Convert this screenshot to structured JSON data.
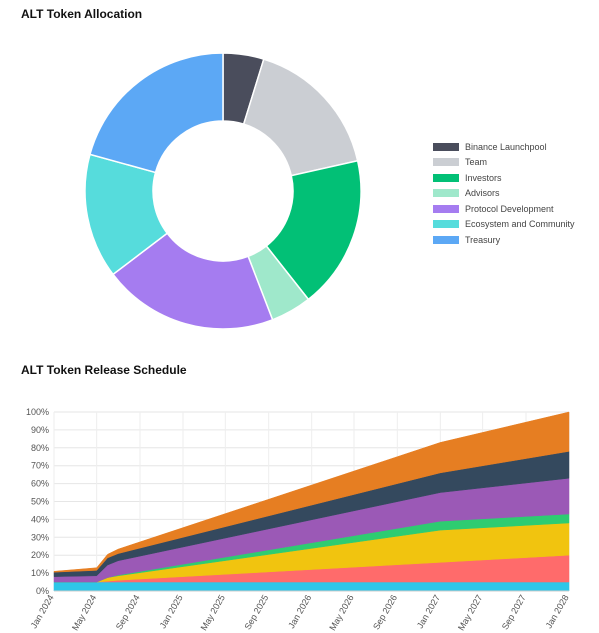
{
  "page": {
    "allocation_title": "ALT Token Allocation",
    "release_title": "ALT Token Release Schedule"
  },
  "chart_data": [
    {
      "type": "pie",
      "style": "donut",
      "title": "ALT Token Allocation",
      "legend_position": "right",
      "labels": [
        "Binance Launchpool",
        "Team",
        "Investors",
        "Advisors",
        "Protocol Development",
        "Ecosystem and Community",
        "Treasury"
      ],
      "values": [
        5,
        17.5,
        18.75,
        5,
        21.5,
        15.29,
        21.71
      ],
      "colors": [
        "#4a4d5c",
        "#cbced3",
        "#02c076",
        "#9fe8cb",
        "#a57cf0",
        "#56dcdc",
        "#5ca8f5"
      ]
    },
    {
      "type": "area",
      "stacked": true,
      "title": "ALT Token Release Schedule",
      "xlabel": "",
      "ylabel": "",
      "ylim": [
        0,
        100
      ],
      "y_ticks": [
        "0%",
        "10%",
        "20%",
        "30%",
        "40%",
        "50%",
        "60%",
        "70%",
        "80%",
        "90%",
        "100%"
      ],
      "grid": true,
      "x": [
        "2024-01",
        "2024-05",
        "2024-06",
        "2024-07",
        "2027-01",
        "2028-01"
      ],
      "x_ticks": [
        "Jan 2024",
        "May 2024",
        "Sep 2024",
        "Jan 2025",
        "May 2025",
        "Sep 2025",
        "Jan 2026",
        "May 2026",
        "Sep 2026",
        "Jan 2027",
        "May 2027",
        "Sep 2027",
        "Jan 2028"
      ],
      "series": [
        {
          "color": "#2ec6e8",
          "values": [
            5,
            5,
            5,
            5,
            5,
            5
          ]
        },
        {
          "color": "#ff6b6b",
          "values": [
            0,
            0,
            0.5,
            1,
            11,
            15
          ]
        },
        {
          "color": "#f1c40f",
          "values": [
            0,
            0,
            2,
            2.5,
            18,
            18
          ]
        },
        {
          "color": "#2ecc71",
          "values": [
            0,
            0,
            0,
            0.4,
            5,
            5
          ]
        },
        {
          "color": "#9b59b6",
          "values": [
            3,
            3.5,
            7,
            8,
            16,
            20
          ]
        },
        {
          "color": "#34495e",
          "values": [
            2.5,
            3,
            4,
            4,
            11,
            15
          ]
        },
        {
          "color": "#e67e22",
          "values": [
            0.5,
            1.5,
            2,
            2.5,
            17,
            22
          ]
        }
      ]
    }
  ]
}
